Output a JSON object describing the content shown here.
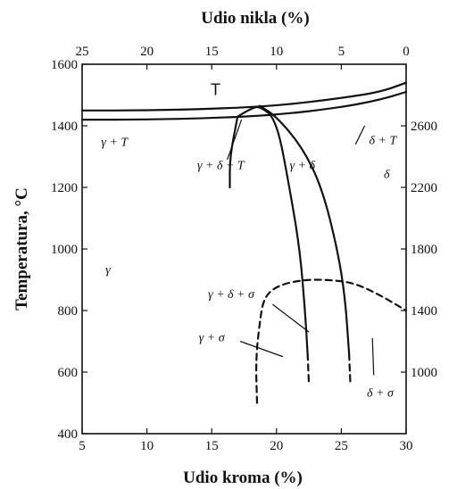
{
  "chart_data": {
    "type": "line",
    "title": "",
    "xlabel_bottom": "Udio kroma (%)",
    "xlabel_top": "Udio nikla (%)",
    "ylabel": "Temperatura, °C",
    "xlim": [
      5,
      30
    ],
    "ylim": [
      400,
      1600
    ],
    "x_ticks": [
      "5",
      "10",
      "15",
      "20",
      "25",
      "30"
    ],
    "y_ticks": [
      "400",
      "600",
      "800",
      "1000",
      "1200",
      "1400",
      "1600"
    ],
    "top_ticks": [
      {
        "label": "25",
        "x": 5
      },
      {
        "label": "20",
        "x": 10
      },
      {
        "label": "15",
        "x": 15
      },
      {
        "label": "10",
        "x": 20
      },
      {
        "label": "5",
        "x": 25
      },
      {
        "label": "0",
        "x": 30
      }
    ],
    "right_ticks": [
      {
        "label": "1000",
        "y": 600
      },
      {
        "label": "1400",
        "y": 800
      },
      {
        "label": "1800",
        "y": 1000
      },
      {
        "label": "2200",
        "y": 1200
      },
      {
        "label": "2600",
        "y": 1400
      }
    ],
    "series": [
      {
        "style": "solid",
        "points": [
          [
            5,
            1450
          ],
          [
            10,
            1450
          ],
          [
            15,
            1455
          ],
          [
            20,
            1465
          ],
          [
            25,
            1490
          ],
          [
            28,
            1510
          ],
          [
            30,
            1540
          ]
        ]
      },
      {
        "style": "solid",
        "points": [
          [
            5,
            1420
          ],
          [
            10,
            1420
          ],
          [
            15,
            1425
          ],
          [
            20,
            1435
          ],
          [
            25,
            1460
          ],
          [
            28,
            1485
          ],
          [
            30,
            1510
          ]
        ]
      },
      {
        "style": "solid",
        "points": [
          [
            17,
            1430
          ],
          [
            18,
            1455
          ],
          [
            18.7,
            1465
          ],
          [
            20,
            1420
          ],
          [
            21,
            1200
          ],
          [
            21.8,
            1000
          ],
          [
            22.2,
            800
          ],
          [
            22.4,
            660
          ]
        ]
      },
      {
        "style": "dashed",
        "points": [
          [
            22.4,
            660
          ],
          [
            22.5,
            560
          ]
        ]
      },
      {
        "style": "solid",
        "points": [
          [
            18.7,
            1465
          ],
          [
            20,
            1430
          ],
          [
            22,
            1330
          ],
          [
            23.5,
            1200
          ],
          [
            24.7,
            1000
          ],
          [
            25.3,
            840
          ],
          [
            25.6,
            660
          ]
        ]
      },
      {
        "style": "dashed",
        "points": [
          [
            25.6,
            660
          ],
          [
            25.7,
            560
          ]
        ]
      },
      {
        "style": "solid",
        "points": [
          [
            17,
            1430
          ],
          [
            16.4,
            1300
          ],
          [
            16.4,
            1200
          ]
        ]
      },
      {
        "style": "dashed",
        "points": [
          [
            18.5,
            500
          ],
          [
            18.4,
            640
          ],
          [
            18.7,
            760
          ],
          [
            19,
            840
          ],
          [
            20,
            880
          ],
          [
            22,
            900
          ],
          [
            24,
            900
          ],
          [
            26,
            890
          ],
          [
            28,
            850
          ],
          [
            30,
            800
          ]
        ]
      }
    ],
    "annotations": [
      {
        "text": "T",
        "x": 15.3,
        "y": 1500,
        "style": "upright"
      },
      {
        "text": "γ + T",
        "x": 7.5,
        "y": 1335,
        "style": "italic"
      },
      {
        "text": "γ + δ + T",
        "x": 15.7,
        "y": 1260,
        "style": "italic"
      },
      {
        "text": "γ + δ",
        "x": 22,
        "y": 1260,
        "style": "italic"
      },
      {
        "text": "δ + T",
        "x": 28.2,
        "y": 1340,
        "style": "italic"
      },
      {
        "text": "δ",
        "x": 28.5,
        "y": 1230,
        "style": "italic"
      },
      {
        "text": "γ",
        "x": 7,
        "y": 920,
        "style": "italic"
      },
      {
        "text": "γ + δ + σ",
        "x": 16.5,
        "y": 840,
        "style": "italic"
      },
      {
        "text": "γ + σ",
        "x": 15,
        "y": 700,
        "style": "italic"
      },
      {
        "text": "δ + σ",
        "x": 28,
        "y": 520,
        "style": "italic"
      }
    ],
    "leaders": [
      {
        "from": [
          26.1,
          1340
        ],
        "to": [
          26.8,
          1400
        ]
      },
      {
        "from": [
          16.2,
          1290
        ],
        "to": [
          17.3,
          1420
        ]
      },
      {
        "from": [
          19.7,
          820
        ],
        "to": [
          22.5,
          730
        ]
      },
      {
        "from": [
          17.2,
          700
        ],
        "to": [
          20.5,
          650
        ]
      },
      {
        "from": [
          27.5,
          590
        ],
        "to": [
          27.4,
          710
        ]
      }
    ]
  }
}
